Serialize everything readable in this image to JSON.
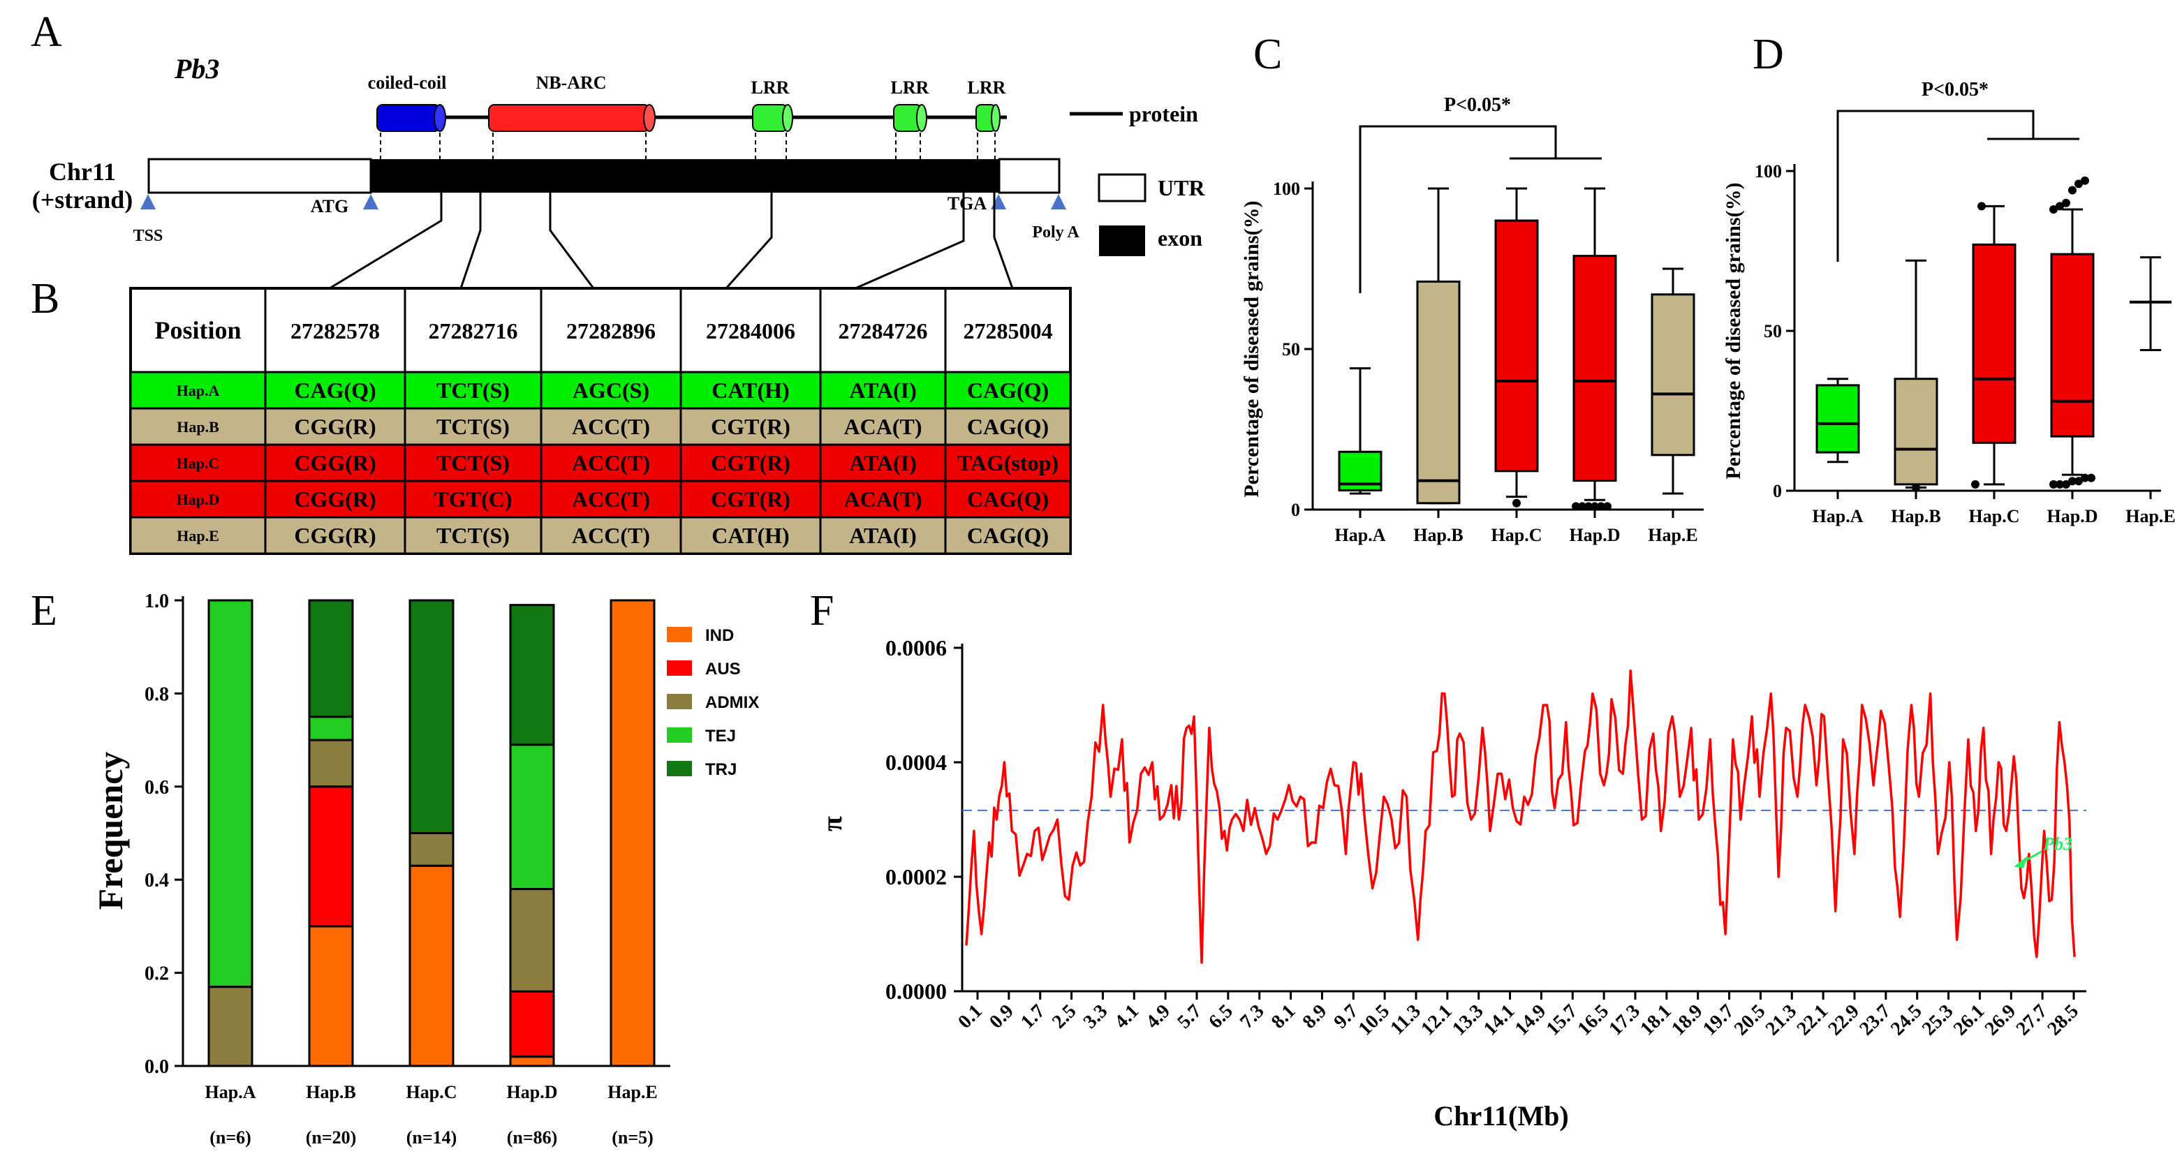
{
  "colors": {
    "green": "#00ee00",
    "tan": "#c3b48a",
    "red": "#ee0000",
    "orange": "#ff6a00",
    "aus": "#ff0000",
    "admix": "#8b7d3e",
    "tej": "#22cc22",
    "trj": "#117711",
    "coiled": "#0000dd",
    "nbarc": "#ff2020",
    "lrr": "#33ee33",
    "line": "#ff0000",
    "mean": "#4a72c8"
  },
  "panelA": {
    "letter": "A",
    "gene": "Pb3",
    "domains": [
      "coiled-coil",
      "NB-ARC",
      "LRR",
      "LRR",
      "LRR"
    ],
    "legend": {
      "protein": "protein",
      "utr": "UTR",
      "exon": "exon"
    },
    "chrom": [
      "Chr11",
      "(+strand)"
    ],
    "markers": {
      "tss": "TSS",
      "atg": "ATG",
      "tga": "TGA",
      "polya": "Poly A"
    }
  },
  "panelB": {
    "letter": "B",
    "headers": [
      "Position",
      "27282578",
      "27282716",
      "27282896",
      "27284006",
      "27284726",
      "27285004"
    ],
    "rows": [
      {
        "name": "Hap.A",
        "cells": [
          "CAG(Q)",
          "TCT(S)",
          "AGC(S)",
          "CAT(H)",
          "ATA(I)",
          "CAG(Q)"
        ],
        "color": "green"
      },
      {
        "name": "Hap.B",
        "cells": [
          "CGG(R)",
          "TCT(S)",
          "ACC(T)",
          "CGT(R)",
          "ACA(T)",
          "CAG(Q)"
        ],
        "color": "tan"
      },
      {
        "name": "Hap.C",
        "cells": [
          "CGG(R)",
          "TCT(S)",
          "ACC(T)",
          "CGT(R)",
          "ATA(I)",
          "TAG(stop)"
        ],
        "color": "red"
      },
      {
        "name": "Hap.D",
        "cells": [
          "CGG(R)",
          "TGT(C)",
          "ACC(T)",
          "CGT(R)",
          "ACA(T)",
          "CAG(Q)"
        ],
        "color": "red"
      },
      {
        "name": "Hap.E",
        "cells": [
          "CGG(R)",
          "TCT(S)",
          "ACC(T)",
          "CAT(H)",
          "ATA(I)",
          "CAG(Q)"
        ],
        "color": "tan"
      }
    ]
  },
  "chart_data": [
    {
      "id": "C",
      "letter": "C",
      "type": "boxplot",
      "ylabel": "Percentage of diseased grains(%)",
      "ylim": [
        0,
        100
      ],
      "yticks": [
        "0",
        "50",
        "100"
      ],
      "significance": "P<0.05*",
      "categories": [
        "Hap.A",
        "Hap.B",
        "Hap.C",
        "Hap.D",
        "Hap.E"
      ],
      "boxes": [
        {
          "min": 5,
          "q1": 6,
          "median": 8,
          "q3": 18,
          "max": 44,
          "color": "green",
          "outliers": []
        },
        {
          "min": 2,
          "q1": 2,
          "median": 9,
          "q3": 71,
          "max": 100,
          "color": "tan",
          "outliers": []
        },
        {
          "min": 4,
          "q1": 12,
          "median": 40,
          "q3": 90,
          "max": 100,
          "color": "red",
          "outliers": [
            2
          ]
        },
        {
          "min": 3,
          "q1": 9,
          "median": 40,
          "q3": 79,
          "max": 100,
          "color": "red",
          "outliers": [
            1,
            1,
            1,
            1,
            1,
            1
          ]
        },
        {
          "min": 5,
          "q1": 17,
          "median": 36,
          "q3": 67,
          "max": 75,
          "color": "tan",
          "outliers": []
        }
      ]
    },
    {
      "id": "D",
      "letter": "D",
      "type": "boxplot",
      "ylabel": "Percentage of diseased grains(%)",
      "ylim": [
        0,
        100
      ],
      "yticks": [
        "0",
        "50",
        "100"
      ],
      "significance": "P<0.05*",
      "categories": [
        "Hap.A",
        "Hap.B",
        "Hap.C",
        "Hap.D",
        "Hap.E"
      ],
      "boxes": [
        {
          "min": 9,
          "q1": 12,
          "median": 21,
          "q3": 33,
          "max": 35,
          "color": "green",
          "outliers": []
        },
        {
          "min": 1,
          "q1": 2,
          "median": 13,
          "q3": 35,
          "max": 72,
          "color": "tan",
          "outliers": [
            1
          ]
        },
        {
          "min": 2,
          "q1": 15,
          "median": 35,
          "q3": 77,
          "max": 89,
          "color": "red",
          "outliers": [
            2,
            89
          ]
        },
        {
          "min": 5,
          "q1": 17,
          "median": 28,
          "q3": 74,
          "max": 88,
          "color": "red",
          "outliers": [
            2,
            2,
            2,
            3,
            3,
            4,
            4,
            88,
            89,
            90,
            94,
            96,
            97
          ]
        },
        {
          "min": 44,
          "q1": 59,
          "median": 59,
          "q3": 59,
          "max": 73,
          "color": "none",
          "outliers": []
        }
      ]
    },
    {
      "id": "E",
      "letter": "E",
      "type": "stacked-bar",
      "ylabel": "Frequency",
      "ylim": [
        0,
        1
      ],
      "yticks": [
        "0.0",
        "0.2",
        "0.4",
        "0.6",
        "0.8",
        "1.0"
      ],
      "categories": [
        "Hap.A",
        "Hap.B",
        "Hap.C",
        "Hap.D",
        "Hap.E"
      ],
      "counts": [
        "(n=6)",
        "(n=20)",
        "(n=14)",
        "(n=86)",
        "(n=5)"
      ],
      "series": [
        {
          "name": "IND",
          "color": "orange",
          "values": [
            0,
            0.3,
            0.43,
            0.02,
            1.0
          ]
        },
        {
          "name": "AUS",
          "color": "aus",
          "values": [
            0,
            0.3,
            0,
            0.14,
            0
          ]
        },
        {
          "name": "ADMIX",
          "color": "admix",
          "values": [
            0.17,
            0.1,
            0.07,
            0.22,
            0
          ]
        },
        {
          "name": "TEJ",
          "color": "tej",
          "values": [
            0.83,
            0.05,
            0,
            0.31,
            0
          ]
        },
        {
          "name": "TRJ",
          "color": "trj",
          "values": [
            0,
            0.25,
            0.5,
            0.3,
            0
          ]
        }
      ]
    },
    {
      "id": "F",
      "letter": "F",
      "type": "line",
      "ylabel": "π",
      "xlabel": "Chr11(Mb)",
      "ylim": [
        0,
        0.0006
      ],
      "yticks": [
        "0.0000",
        "0.0002",
        "0.0004",
        "0.0006"
      ],
      "xticks": [
        "0.1",
        "0.9",
        "1.7",
        "2.5",
        "3.3",
        "4.1",
        "4.9",
        "5.7",
        "6.5",
        "7.3",
        "8.1",
        "8.9",
        "9.7",
        "10.5",
        "11.3",
        "12.1",
        "13.3",
        "14.1",
        "14.9",
        "15.7",
        "16.5",
        "17.3",
        "18.1",
        "18.9",
        "19.7",
        "20.5",
        "21.3",
        "22.1",
        "22.9",
        "23.7",
        "24.5",
        "25.3",
        "26.1",
        "26.9",
        "27.7",
        "28.5"
      ],
      "mean_line": 0.000316,
      "annotation": "Pb3",
      "annotation_at": [
        27.6,
        0.00022
      ],
      "x_range": [
        0,
        29.4
      ],
      "keypoints": [
        [
          0.0,
          8e-05
        ],
        [
          0.2,
          0.00028
        ],
        [
          0.4,
          0.0001
        ],
        [
          0.6,
          0.00026
        ],
        [
          0.8,
          0.0003
        ],
        [
          1.0,
          0.0004
        ],
        [
          1.2,
          0.00028
        ],
        [
          1.5,
          0.00022
        ],
        [
          1.8,
          0.00028
        ],
        [
          2.1,
          0.00025
        ],
        [
          2.4,
          0.0003
        ],
        [
          2.7,
          0.00016
        ],
        [
          3.0,
          0.00022
        ],
        [
          3.3,
          0.00034
        ],
        [
          3.6,
          0.0005
        ],
        [
          3.8,
          0.00034
        ],
        [
          4.1,
          0.00044
        ],
        [
          4.3,
          0.00026
        ],
        [
          4.6,
          0.00038
        ],
        [
          4.9,
          0.0004
        ],
        [
          5.1,
          0.0003
        ],
        [
          5.4,
          0.00036
        ],
        [
          5.6,
          0.0003
        ],
        [
          5.8,
          0.00046
        ],
        [
          6.0,
          0.00048
        ],
        [
          6.2,
          5e-05
        ],
        [
          6.4,
          0.00046
        ],
        [
          6.6,
          0.00035
        ],
        [
          6.8,
          0.00028
        ],
        [
          7.0,
          0.0003
        ],
        [
          7.3,
          0.00028
        ],
        [
          7.6,
          0.00032
        ],
        [
          7.9,
          0.00024
        ],
        [
          8.2,
          0.0003
        ],
        [
          8.5,
          0.00036
        ],
        [
          8.8,
          0.00034
        ],
        [
          9.1,
          0.00026
        ],
        [
          9.4,
          0.00032
        ],
        [
          9.7,
          0.00036
        ],
        [
          10.0,
          0.00024
        ],
        [
          10.2,
          0.0004
        ],
        [
          10.4,
          0.00038
        ],
        [
          10.7,
          0.00018
        ],
        [
          11.0,
          0.00034
        ],
        [
          11.3,
          0.00025
        ],
        [
          11.6,
          0.00034
        ],
        [
          11.9,
          9e-05
        ],
        [
          12.1,
          0.00028
        ],
        [
          12.4,
          0.00042
        ],
        [
          12.6,
          0.00052
        ],
        [
          12.8,
          0.00034
        ],
        [
          13.0,
          0.00045
        ],
        [
          13.3,
          0.0003
        ],
        [
          13.6,
          0.00046
        ],
        [
          13.8,
          0.00028
        ],
        [
          14.1,
          0.00038
        ],
        [
          14.4,
          0.00032
        ],
        [
          14.7,
          0.00034
        ],
        [
          15.0,
          0.00041
        ],
        [
          15.3,
          0.0005
        ],
        [
          15.5,
          0.00032
        ],
        [
          15.8,
          0.00047
        ],
        [
          16.0,
          0.00029
        ],
        [
          16.3,
          0.00042
        ],
        [
          16.5,
          0.00052
        ],
        [
          16.8,
          0.00036
        ],
        [
          17.0,
          0.00051
        ],
        [
          17.3,
          0.00038
        ],
        [
          17.5,
          0.00056
        ],
        [
          17.8,
          0.0003
        ],
        [
          18.1,
          0.00045
        ],
        [
          18.3,
          0.00028
        ],
        [
          18.6,
          0.00048
        ],
        [
          18.8,
          0.00034
        ],
        [
          19.1,
          0.00046
        ],
        [
          19.3,
          0.0003
        ],
        [
          19.6,
          0.00044
        ],
        [
          19.8,
          0.00024
        ],
        [
          20.0,
          0.0001
        ],
        [
          20.2,
          0.00044
        ],
        [
          20.4,
          0.0003
        ],
        [
          20.7,
          0.00048
        ],
        [
          20.9,
          0.00034
        ],
        [
          21.2,
          0.00052
        ],
        [
          21.4,
          0.0002
        ],
        [
          21.6,
          0.00046
        ],
        [
          21.9,
          0.00034
        ],
        [
          22.1,
          0.0005
        ],
        [
          22.4,
          0.00036
        ],
        [
          22.6,
          0.00048
        ],
        [
          22.9,
          0.00014
        ],
        [
          23.1,
          0.00044
        ],
        [
          23.4,
          0.00024
        ],
        [
          23.6,
          0.0005
        ],
        [
          23.9,
          0.00036
        ],
        [
          24.1,
          0.00049
        ],
        [
          24.4,
          0.00032
        ],
        [
          24.6,
          0.00013
        ],
        [
          24.9,
          0.0005
        ],
        [
          25.1,
          0.00034
        ],
        [
          25.4,
          0.00052
        ],
        [
          25.6,
          0.00024
        ],
        [
          25.9,
          0.0004
        ],
        [
          26.1,
          9e-05
        ],
        [
          26.4,
          0.00044
        ],
        [
          26.6,
          0.00028
        ],
        [
          26.8,
          0.00046
        ],
        [
          27.0,
          0.00024
        ],
        [
          27.2,
          0.0004
        ],
        [
          27.4,
          0.00028
        ],
        [
          27.6,
          0.00041
        ],
        [
          27.8,
          0.00018
        ],
        [
          28.0,
          0.00024
        ],
        [
          28.2,
          6e-05
        ],
        [
          28.4,
          0.00028
        ],
        [
          28.6,
          0.00016
        ],
        [
          28.8,
          0.00047
        ],
        [
          29.0,
          0.00036
        ],
        [
          29.2,
          6e-05
        ]
      ]
    }
  ]
}
